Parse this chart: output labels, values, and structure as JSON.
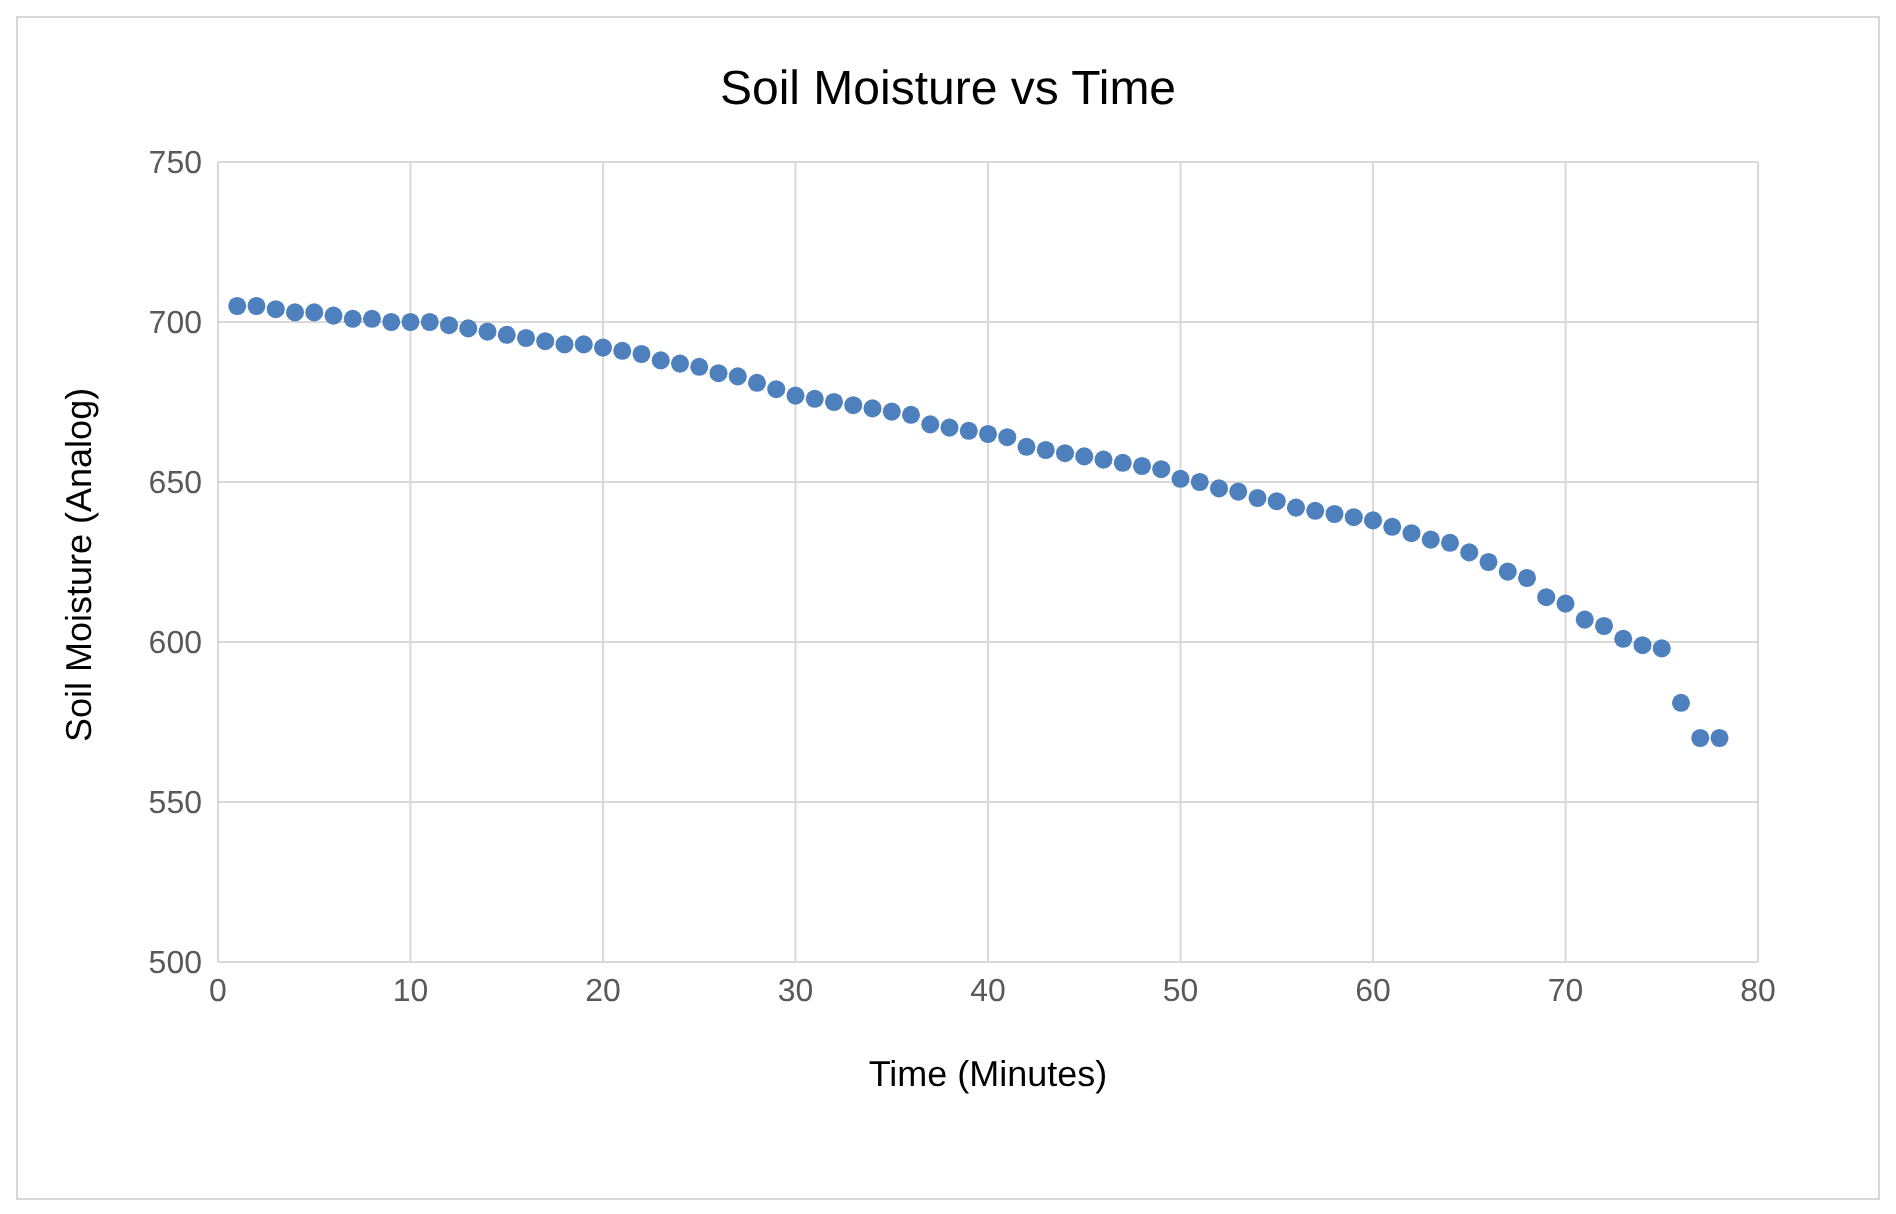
{
  "chart_data": {
    "type": "scatter",
    "title": "Soil Moisture vs Time",
    "xlabel": "Time (Minutes)",
    "ylabel": "Soil Moisture (Analog)",
    "x": [
      1,
      2,
      3,
      4,
      5,
      6,
      7,
      8,
      9,
      10,
      11,
      12,
      13,
      14,
      15,
      16,
      17,
      18,
      19,
      20,
      21,
      22,
      23,
      24,
      25,
      26,
      27,
      28,
      29,
      30,
      31,
      32,
      33,
      34,
      35,
      36,
      37,
      38,
      39,
      40,
      41,
      42,
      43,
      44,
      45,
      46,
      47,
      48,
      49,
      50,
      51,
      52,
      53,
      54,
      55,
      56,
      57,
      58,
      59,
      60,
      61,
      62,
      63,
      64,
      65,
      66,
      67,
      68,
      69,
      70,
      71,
      72,
      73,
      74,
      75,
      76,
      77,
      78
    ],
    "series": [
      {
        "color": "#4e80bd",
        "values": [
          705,
          705,
          704,
          703,
          703,
          702,
          701,
          701,
          700,
          700,
          700,
          699,
          698,
          697,
          696,
          695,
          694,
          693,
          693,
          692,
          691,
          690,
          688,
          687,
          686,
          684,
          683,
          681,
          679,
          677,
          676,
          675,
          674,
          673,
          672,
          671,
          668,
          667,
          666,
          665,
          664,
          661,
          660,
          659,
          658,
          657,
          656,
          655,
          654,
          651,
          650,
          648,
          647,
          645,
          644,
          642,
          641,
          640,
          639,
          638,
          636,
          634,
          632,
          631,
          628,
          625,
          622,
          620,
          614,
          612,
          607,
          605,
          601,
          599,
          598,
          581,
          570,
          570
        ]
      }
    ],
    "xlim": [
      0,
      80
    ],
    "xticks": [
      0,
      10,
      20,
      30,
      40,
      50,
      60,
      70,
      80
    ],
    "ylim": [
      500,
      750
    ],
    "yticks": [
      500,
      550,
      600,
      650,
      700,
      750
    ],
    "grid": true,
    "marker": "circle",
    "legend": false
  }
}
